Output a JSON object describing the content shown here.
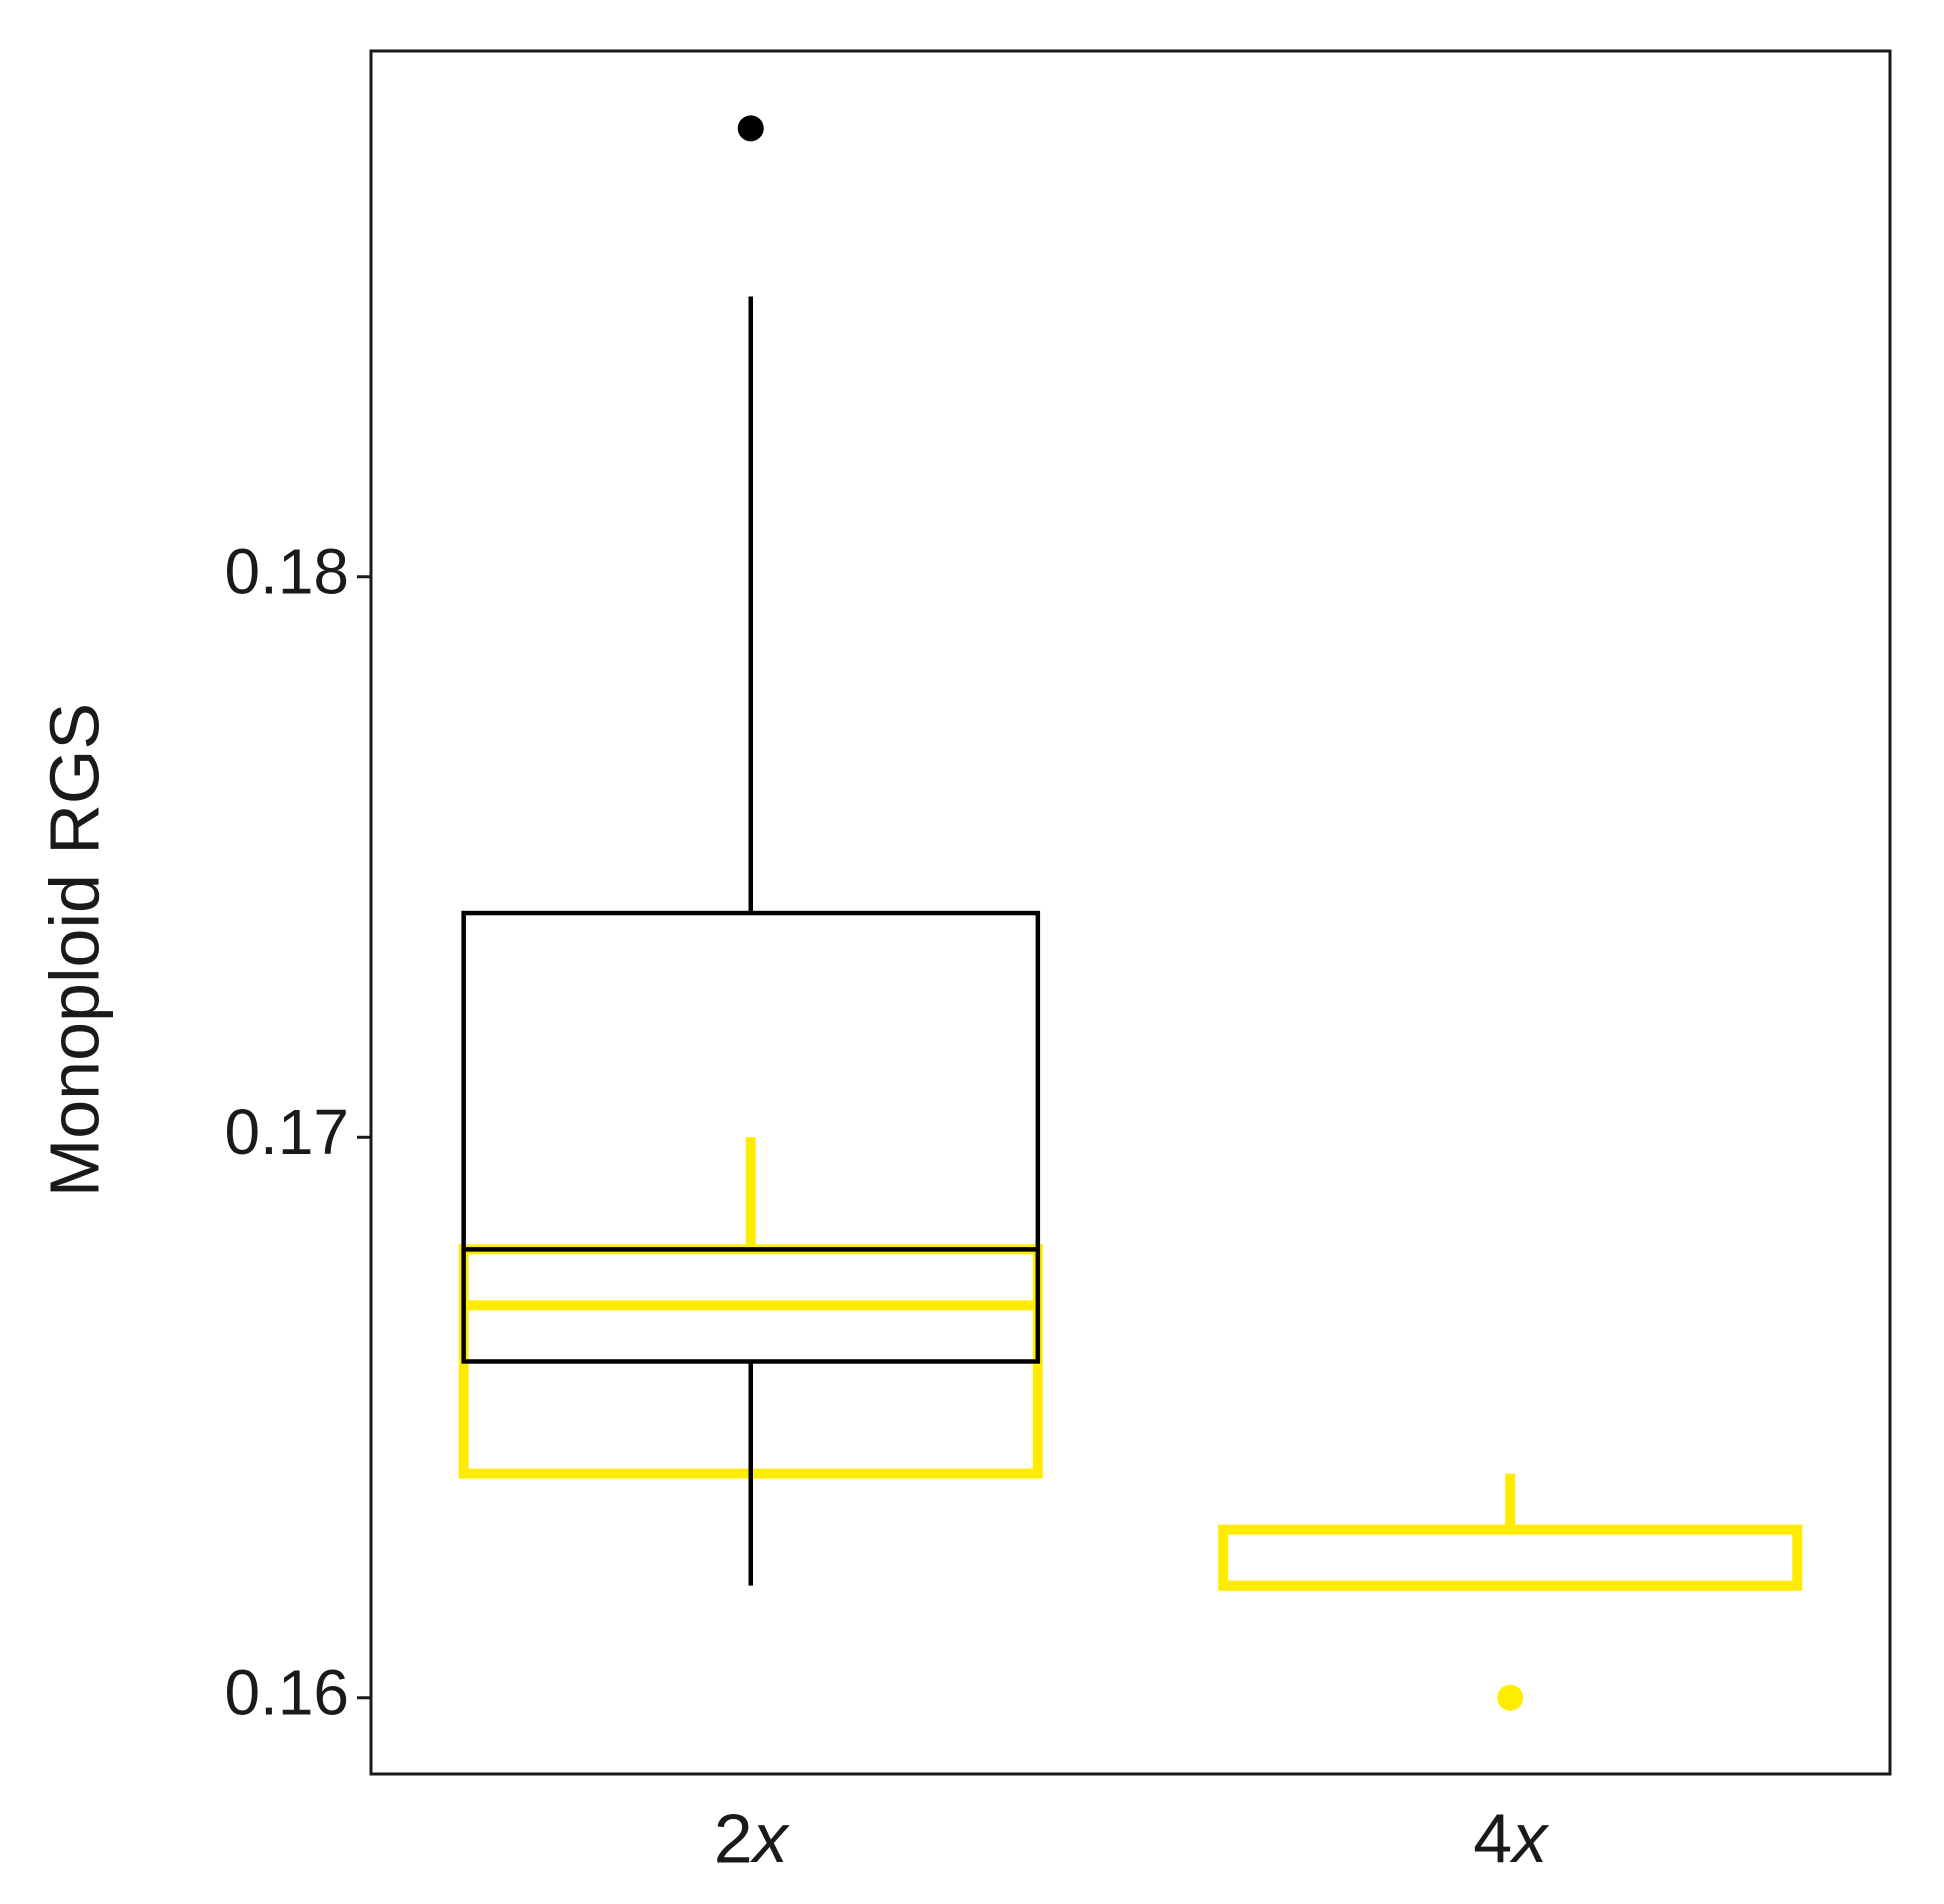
{
  "chart_data": {
    "type": "box",
    "ylabel": "Monoploid RGS",
    "categories": [
      "2x",
      "4x"
    ],
    "ylim": [
      0.15864,
      0.18938
    ],
    "yticks": [
      0.16,
      0.17,
      0.18
    ],
    "series": [
      {
        "color": "#ffec00",
        "boxes": [
          {
            "min": 0.164,
            "q1": 0.164,
            "median": 0.167,
            "q3": 0.168,
            "max": 0.17,
            "outliers": []
          },
          {
            "min": 0.162,
            "q1": 0.162,
            "median": 0.162,
            "q3": 0.163,
            "max": 0.164,
            "outliers": [
              0.16
            ]
          }
        ]
      },
      {
        "color": "#000000",
        "boxes": [
          {
            "min": 0.162,
            "q1": 0.166,
            "median": 0.168,
            "q3": 0.174,
            "max": 0.185,
            "outliers": [
              0.188
            ]
          },
          null
        ]
      }
    ]
  }
}
